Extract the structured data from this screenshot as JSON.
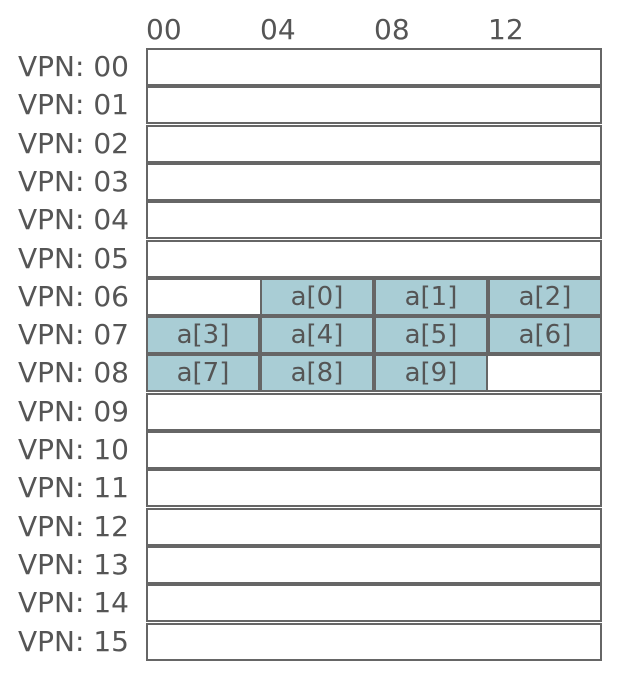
{
  "columns": [
    "00",
    "04",
    "08",
    "12"
  ],
  "rows": [
    {
      "label": "VPN: 00",
      "cells": [
        null,
        null,
        null,
        null
      ]
    },
    {
      "label": "VPN: 01",
      "cells": [
        null,
        null,
        null,
        null
      ]
    },
    {
      "label": "VPN: 02",
      "cells": [
        null,
        null,
        null,
        null
      ]
    },
    {
      "label": "VPN: 03",
      "cells": [
        null,
        null,
        null,
        null
      ]
    },
    {
      "label": "VPN: 04",
      "cells": [
        null,
        null,
        null,
        null
      ]
    },
    {
      "label": "VPN: 05",
      "cells": [
        null,
        null,
        null,
        null
      ]
    },
    {
      "label": "VPN: 06",
      "cells": [
        null,
        "a[0]",
        "a[1]",
        "a[2]"
      ]
    },
    {
      "label": "VPN: 07",
      "cells": [
        "a[3]",
        "a[4]",
        "a[5]",
        "a[6]"
      ]
    },
    {
      "label": "VPN: 08",
      "cells": [
        "a[7]",
        "a[8]",
        "a[9]",
        null
      ]
    },
    {
      "label": "VPN: 09",
      "cells": [
        null,
        null,
        null,
        null
      ]
    },
    {
      "label": "VPN: 10",
      "cells": [
        null,
        null,
        null,
        null
      ]
    },
    {
      "label": "VPN: 11",
      "cells": [
        null,
        null,
        null,
        null
      ]
    },
    {
      "label": "VPN: 12",
      "cells": [
        null,
        null,
        null,
        null
      ]
    },
    {
      "label": "VPN: 13",
      "cells": [
        null,
        null,
        null,
        null
      ]
    },
    {
      "label": "VPN: 14",
      "cells": [
        null,
        null,
        null,
        null
      ]
    },
    {
      "label": "VPN: 15",
      "cells": [
        null,
        null,
        null,
        null
      ]
    }
  ],
  "colors": {
    "filled_cell": "#a9cdd5",
    "border": "#666666",
    "text": "#555555"
  }
}
